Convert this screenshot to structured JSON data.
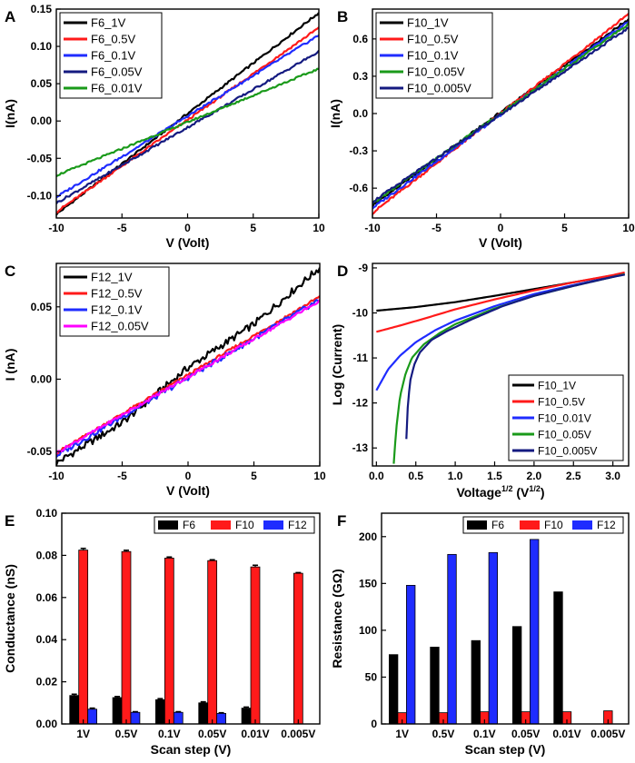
{
  "colors": {
    "black": "#000000",
    "red": "#ff1a1a",
    "blue": "#1f2cff",
    "navy": "#141a80",
    "green": "#1a9a1a",
    "magenta": "#ff00ff"
  },
  "chart_data": [
    {
      "id": "A",
      "panel_label": "A",
      "type": "line",
      "title": "",
      "xlabel": "V (Volt)",
      "ylabel": "I(nA)",
      "xlim": [
        -10,
        10
      ],
      "ylim": [
        -0.13,
        0.15
      ],
      "xticks": [
        -10,
        -5,
        0,
        5,
        10
      ],
      "yticks": [
        -0.1,
        -0.05,
        0.0,
        0.05,
        0.1,
        0.15
      ],
      "ytick_labels": [
        "-0.10",
        "-0.05",
        "0.00",
        "0.05",
        "0.10",
        "0.15"
      ],
      "legend_position": "top-left",
      "series": [
        {
          "name": "F6_1V",
          "color": "#000000",
          "x": [
            -10,
            10
          ],
          "y": [
            -0.125,
            0.145
          ],
          "wobble": 0.0015
        },
        {
          "name": "F6_0.5V",
          "color": "#ff1a1a",
          "x": [
            -10,
            10
          ],
          "y": [
            -0.122,
            0.125
          ],
          "wobble": 0.0015
        },
        {
          "name": "F6_0.1V",
          "color": "#1f2cff",
          "x": [
            -10,
            10
          ],
          "y": [
            -0.102,
            0.115
          ],
          "wobble": 0.0015
        },
        {
          "name": "F6_0.05V",
          "color": "#141a80",
          "x": [
            -10,
            10
          ],
          "y": [
            -0.11,
            0.093
          ],
          "wobble": 0.0015
        },
        {
          "name": "F6_0.01V",
          "color": "#1a9a1a",
          "x": [
            -10,
            10
          ],
          "y": [
            -0.073,
            0.07
          ],
          "wobble": 0.0012
        }
      ]
    },
    {
      "id": "B",
      "panel_label": "B",
      "type": "line",
      "title": "",
      "xlabel": "V (Volt)",
      "ylabel": "I(nA)",
      "xlim": [
        -10,
        10
      ],
      "ylim": [
        -0.84,
        0.84
      ],
      "xticks": [
        -10,
        -5,
        0,
        5,
        10
      ],
      "yticks": [
        -0.6,
        -0.3,
        0.0,
        0.3,
        0.6
      ],
      "ytick_labels": [
        "-0.6",
        "-0.3",
        "0.0",
        "0.3",
        "0.6"
      ],
      "legend_position": "top-left",
      "series": [
        {
          "name": "F10_1V",
          "color": "#000000",
          "x": [
            -10,
            10
          ],
          "y": [
            -0.74,
            0.76
          ],
          "wobble": 0.01
        },
        {
          "name": "F10_0.5V",
          "color": "#ff1a1a",
          "x": [
            -10,
            10
          ],
          "y": [
            -0.8,
            0.8
          ],
          "wobble": 0.01
        },
        {
          "name": "F10_0.1V",
          "color": "#1f2cff",
          "x": [
            -10,
            10
          ],
          "y": [
            -0.76,
            0.74
          ],
          "wobble": 0.01
        },
        {
          "name": "F10_0.05V",
          "color": "#1a9a1a",
          "x": [
            -10,
            10
          ],
          "y": [
            -0.72,
            0.72
          ],
          "wobble": 0.01
        },
        {
          "name": "F10_0.005V",
          "color": "#141a80",
          "x": [
            -10,
            10
          ],
          "y": [
            -0.71,
            0.69
          ],
          "wobble": 0.01
        }
      ]
    },
    {
      "id": "C",
      "panel_label": "C",
      "type": "line",
      "title": "",
      "xlabel": "V (Volt)",
      "ylabel": "I (nA)",
      "xlim": [
        -10,
        10
      ],
      "ylim": [
        -0.06,
        0.08
      ],
      "xticks": [
        -10,
        -5,
        0,
        5,
        10
      ],
      "yticks": [
        -0.05,
        0.0,
        0.05
      ],
      "ytick_labels": [
        "-0.05",
        "0.00",
        "0.05"
      ],
      "legend_position": "top-left",
      "series": [
        {
          "name": "F12_1V",
          "color": "#000000",
          "x": [
            -10,
            -5,
            0,
            5,
            10
          ],
          "y": [
            -0.058,
            -0.03,
            0.008,
            0.038,
            0.077
          ],
          "wobble": 0.0025
        },
        {
          "name": "F12_0.5V",
          "color": "#ff1a1a",
          "x": [
            -10,
            10
          ],
          "y": [
            -0.051,
            0.057
          ],
          "wobble": 0.001
        },
        {
          "name": "F12_0.1V",
          "color": "#1f2cff",
          "x": [
            -10,
            10
          ],
          "y": [
            -0.053,
            0.055
          ],
          "wobble": 0.0018
        },
        {
          "name": "F12_0.05V",
          "color": "#ff00ff",
          "x": [
            -10,
            10
          ],
          "y": [
            -0.051,
            0.054
          ],
          "wobble": 0.001
        }
      ]
    },
    {
      "id": "D",
      "panel_label": "D",
      "type": "line",
      "title": "",
      "xlabel": "Voltage1/2 (V1/2)",
      "ylabel": "Log (Current)",
      "xlim": [
        -0.05,
        3.2
      ],
      "ylim": [
        -13.4,
        -8.9
      ],
      "xticks": [
        0.0,
        0.5,
        1.0,
        1.5,
        2.0,
        2.5,
        3.0
      ],
      "xtick_labels": [
        "0.0",
        "0.5",
        "1.0",
        "1.5",
        "2.0",
        "2.5",
        "3.0"
      ],
      "yticks": [
        -13,
        -12,
        -11,
        -10,
        -9
      ],
      "ytick_labels": [
        "-13",
        "-12",
        "-11",
        "-10",
        "-9"
      ],
      "legend_position": "bottom-right",
      "series": [
        {
          "name": "F10_1V",
          "color": "#000000",
          "x": [
            0.0,
            0.5,
            1.0,
            1.5,
            2.0,
            2.5,
            3.0,
            3.15
          ],
          "y": [
            -9.95,
            -9.87,
            -9.76,
            -9.62,
            -9.47,
            -9.32,
            -9.17,
            -9.13
          ]
        },
        {
          "name": "F10_0.5V",
          "color": "#ff1a1a",
          "x": [
            0.0,
            0.3,
            0.6,
            1.0,
            1.5,
            2.0,
            2.5,
            3.0,
            3.15
          ],
          "y": [
            -10.42,
            -10.28,
            -10.13,
            -9.92,
            -9.7,
            -9.5,
            -9.32,
            -9.16,
            -9.1
          ]
        },
        {
          "name": "F10_0.01V",
          "color": "#1f2cff",
          "x": [
            0.0,
            0.15,
            0.3,
            0.5,
            0.75,
            1.0,
            1.5,
            2.0,
            2.5,
            3.0,
            3.15
          ],
          "y": [
            -11.72,
            -11.25,
            -10.95,
            -10.65,
            -10.38,
            -10.17,
            -9.85,
            -9.58,
            -9.38,
            -9.2,
            -9.14
          ]
        },
        {
          "name": "F10_0.05V",
          "color": "#1a9a1a",
          "x": [
            0.22,
            0.25,
            0.3,
            0.37,
            0.45,
            0.6,
            0.8,
            1.0,
            1.5,
            2.0,
            2.5,
            3.0,
            3.15
          ],
          "y": [
            -13.35,
            -12.6,
            -11.85,
            -11.35,
            -11.0,
            -10.7,
            -10.45,
            -10.25,
            -9.9,
            -9.62,
            -9.4,
            -9.2,
            -9.14
          ]
        },
        {
          "name": "F10_0.005V",
          "color": "#141a80",
          "x": [
            0.38,
            0.4,
            0.43,
            0.48,
            0.55,
            0.7,
            0.9,
            1.2,
            1.6,
            2.0,
            2.5,
            3.0,
            3.15
          ],
          "y": [
            -12.8,
            -12.0,
            -11.5,
            -11.15,
            -10.88,
            -10.6,
            -10.4,
            -10.15,
            -9.85,
            -9.62,
            -9.4,
            -9.2,
            -9.15
          ]
        }
      ]
    },
    {
      "id": "E",
      "panel_label": "E",
      "type": "bar",
      "title": "",
      "xlabel": "Scan step (V)",
      "ylabel": "Conductance (nS)",
      "categories": [
        "1V",
        "0.5V",
        "0.1V",
        "0.05V",
        "0.01V",
        "0.005V"
      ],
      "ylim": [
        0,
        0.1
      ],
      "yticks": [
        0.0,
        0.02,
        0.04,
        0.06,
        0.08,
        0.1
      ],
      "ytick_labels": [
        "0.00",
        "0.02",
        "0.04",
        "0.06",
        "0.08",
        "0.10"
      ],
      "error_bars": true,
      "legend_position": "top-right",
      "series": [
        {
          "name": "F6",
          "color": "#000000",
          "values": [
            0.0135,
            0.0125,
            0.0115,
            0.01,
            0.0075,
            null
          ],
          "errors": [
            0.0006,
            0.0005,
            0.0005,
            0.0005,
            0.0005,
            0
          ]
        },
        {
          "name": "F10",
          "color": "#ff1a1a",
          "values": [
            0.0825,
            0.0818,
            0.0787,
            0.0775,
            0.0745,
            0.0715
          ],
          "errors": [
            0.0008,
            0.0006,
            0.0005,
            0.0004,
            0.0008,
            0.0003
          ]
        },
        {
          "name": "F12",
          "color": "#1f2cff",
          "values": [
            0.007,
            0.0055,
            0.0055,
            0.005,
            null,
            null
          ],
          "errors": [
            0.0005,
            0.0003,
            0.0003,
            0.0003,
            0,
            0
          ]
        }
      ]
    },
    {
      "id": "F",
      "panel_label": "F",
      "type": "bar",
      "title": "",
      "xlabel": "Scan step (V)",
      "ylabel": "Resistance (GΩ)",
      "categories": [
        "1V",
        "0.5V",
        "0.1V",
        "0.05V",
        "0.01V",
        "0.005V"
      ],
      "ylim": [
        0,
        225
      ],
      "yticks": [
        0,
        50,
        100,
        150,
        200
      ],
      "ytick_labels": [
        "0",
        "50",
        "100",
        "150",
        "200"
      ],
      "error_bars": false,
      "legend_position": "top-right",
      "series": [
        {
          "name": "F6",
          "color": "#000000",
          "values": [
            74,
            82,
            89,
            104,
            141,
            null
          ]
        },
        {
          "name": "F10",
          "color": "#ff1a1a",
          "values": [
            12,
            12,
            13,
            13,
            13,
            14
          ]
        },
        {
          "name": "F12",
          "color": "#1f2cff",
          "values": [
            148,
            181,
            183,
            197,
            null,
            null
          ]
        }
      ]
    }
  ]
}
